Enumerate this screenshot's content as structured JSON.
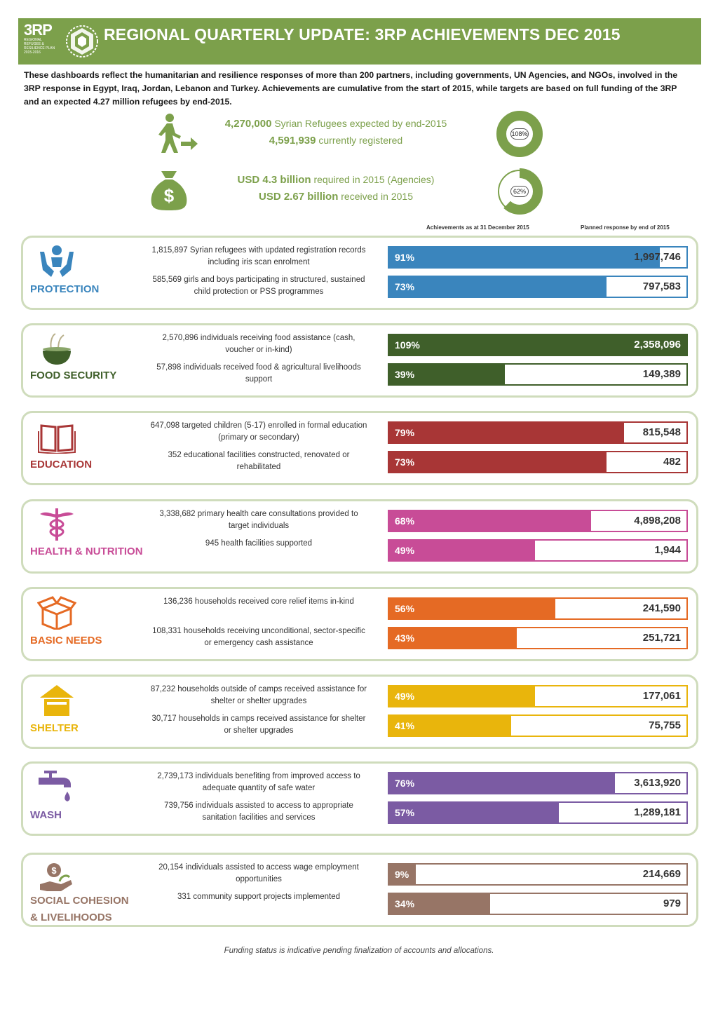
{
  "header": {
    "logo_text": "3RP",
    "logo_sub": "REGIONAL REFUGEE & RESILIENCE PLAN 2015-2016",
    "title": "REGIONAL QUARTERLY UPDATE: 3RP ACHIEVEMENTS DEC 2015",
    "color": "#7ca04b"
  },
  "intro": "These dashboards reflect the humanitarian and resilience responses of more than 200 partners, including governments, UN Agencies, and NGOs, involved in the 3RP response in Egypt, Iraq, Jordan, Lebanon and Turkey. Achievements are cumulative from the start of 2015, while targets are based on full funding of the 3RP and an expected 4.27 million refugees by end-2015.",
  "refugees": {
    "line1_value": "4,270,000",
    "line1_text": "Syrian Refugees expected by end-2015",
    "line2_value": "4,591,939",
    "line2_text": "currently registered",
    "donut_label": "108%",
    "donut_fraction": 1.0,
    "icon": "walking-person-icon"
  },
  "funding": {
    "line1_value": "USD 4.3 billion",
    "line1_text": "required in 2015 (Agencies)",
    "line2_value": "USD 2.67 billion",
    "line2_text": "received in 2015",
    "donut_label": "62%",
    "donut_fraction": 0.62,
    "icon": "money-bag-icon"
  },
  "columns": {
    "achievements": "Achievements as at 31 December 2015",
    "planned": "Planned response by end of 2015"
  },
  "sectors": [
    {
      "name": "PROTECTION",
      "color": "#3a85bd",
      "icon": "protection-hands-icon",
      "indicators": [
        {
          "text": "1,815,897 Syrian refugees with updated registration records including iris scan enrolment",
          "pct_label": "91%",
          "fill": 0.91,
          "target": "1,997,746"
        },
        {
          "text": "585,569 girls and boys participating in structured, sustained child protection or PSS programmes",
          "pct_label": "73%",
          "fill": 0.73,
          "target": "797,583"
        }
      ]
    },
    {
      "name": "FOOD SECURITY",
      "color": "#3f5f2a",
      "icon": "food-bowl-icon",
      "indicators": [
        {
          "text": "2,570,896 individuals receiving food assistance (cash, voucher or in-kind)",
          "pct_label": "109%",
          "fill": 1.0,
          "target": "2,358,096"
        },
        {
          "text": "57,898 individuals received food & agricultural livelihoods support",
          "pct_label": "39%",
          "fill": 0.39,
          "target": "149,389"
        }
      ]
    },
    {
      "name": "EDUCATION",
      "color": "#a83636",
      "icon": "open-book-icon",
      "indicators": [
        {
          "text": "647,098 targeted children (5-17) enrolled in formal education (primary or secondary)",
          "pct_label": "79%",
          "fill": 0.79,
          "target": "815,548"
        },
        {
          "text": "352 educational facilities constructed, renovated or rehabilitated",
          "pct_label": "73%",
          "fill": 0.73,
          "target": "482"
        }
      ]
    },
    {
      "name": "HEALTH & NUTRITION",
      "color": "#c84c97",
      "icon": "caduceus-icon",
      "indicators": [
        {
          "text": "3,338,682 primary health care consultations provided to target individuals",
          "pct_label": "68%",
          "fill": 0.68,
          "target": "4,898,208"
        },
        {
          "text": "945 health facilities supported",
          "pct_label": "49%",
          "fill": 0.49,
          "target": "1,944"
        }
      ]
    },
    {
      "name": "BASIC NEEDS",
      "color": "#e56a24",
      "icon": "relief-box-icon",
      "indicators": [
        {
          "text": "136,236 households received core relief items in-kind",
          "pct_label": "56%",
          "fill": 0.56,
          "target": "241,590"
        },
        {
          "text": "108,331 households receiving unconditional, sector-specific or emergency cash assistance",
          "pct_label": "43%",
          "fill": 0.43,
          "target": "251,721"
        }
      ]
    },
    {
      "name": "SHELTER",
      "color": "#e9b50c",
      "icon": "house-icon",
      "indicators": [
        {
          "text": "87,232 households outside of camps received assistance for shelter or shelter upgrades",
          "pct_label": "49%",
          "fill": 0.49,
          "target": "177,061"
        },
        {
          "text": "30,717 households in camps received assistance for shelter or shelter upgrades",
          "pct_label": "41%",
          "fill": 0.41,
          "target": "75,755"
        }
      ]
    },
    {
      "name": "WASH",
      "color": "#7b5ba3",
      "icon": "water-tap-icon",
      "indicators": [
        {
          "text": "2,739,173 individuals benefiting from improved access to adequate quantity of safe water",
          "pct_label": "76%",
          "fill": 0.76,
          "target": "3,613,920"
        },
        {
          "text": "739,756 individuals assisted to access to appropriate sanitation facilities and services",
          "pct_label": "57%",
          "fill": 0.57,
          "target": "1,289,181"
        }
      ]
    },
    {
      "name": "SOCIAL COHESION & LIVELIHOODS",
      "name_line1": "SOCIAL COHESION",
      "name_line2": "& LIVELIHOODS",
      "color": "#977566",
      "icon": "livelihood-hand-icon",
      "indicators": [
        {
          "text": "20,154 individuals assisted to access wage employment opportunities",
          "pct_label": "9%",
          "fill": 0.09,
          "target": "214,669"
        },
        {
          "text": "331 community support projects implemented",
          "pct_label": "34%",
          "fill": 0.34,
          "target": "979"
        }
      ]
    }
  ],
  "footer": "Funding status is indicative pending finalization of accounts and allocations."
}
